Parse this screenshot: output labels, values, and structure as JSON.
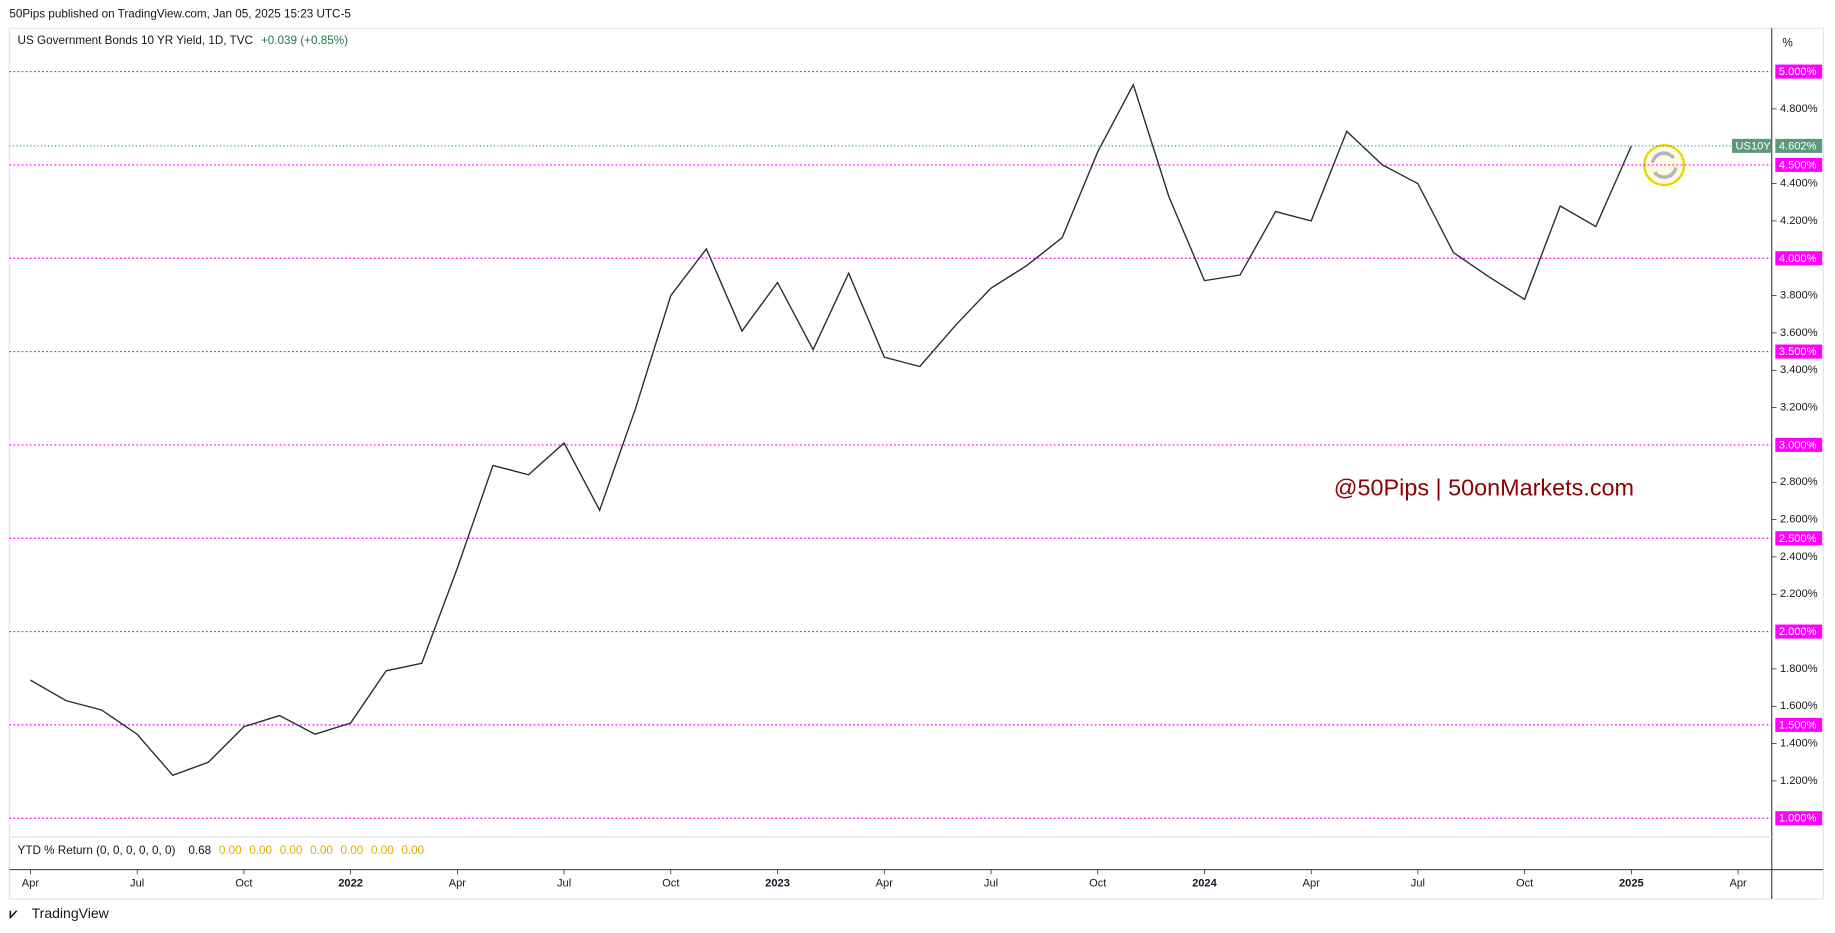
{
  "header": "50Pips published on TradingView.com, Jan 05, 2025 15:23 UTC-5",
  "footer": "TradingView",
  "chart_data": {
    "type": "line",
    "title": "US Government Bonds 10 YR Yield, 1D, TVC",
    "change": "+0.039 (+0.85%)",
    "annotation": "@50Pips | 50onMarkets.com",
    "y_unit": "%",
    "color": "#2a2e39",
    "x": [
      "2021-04",
      "2021-05",
      "2021-06",
      "2021-07",
      "2021-08",
      "2021-09",
      "2021-10",
      "2021-11",
      "2021-12",
      "2022-01",
      "2022-02",
      "2022-03",
      "2022-04",
      "2022-05",
      "2022-06",
      "2022-07",
      "2022-08",
      "2022-09",
      "2022-10",
      "2022-11",
      "2022-12",
      "2023-01",
      "2023-02",
      "2023-03",
      "2023-04",
      "2023-05",
      "2023-06",
      "2023-07",
      "2023-08",
      "2023-09",
      "2023-10",
      "2023-11",
      "2023-12",
      "2024-01",
      "2024-02",
      "2024-03",
      "2024-04",
      "2024-05",
      "2024-06",
      "2024-07",
      "2024-08",
      "2024-09",
      "2024-10",
      "2024-11",
      "2024-12",
      "2025-01"
    ],
    "series": [
      {
        "name": "US10Y",
        "values": [
          1.74,
          1.63,
          1.58,
          1.45,
          1.23,
          1.3,
          1.49,
          1.55,
          1.45,
          1.51,
          1.79,
          1.83,
          2.34,
          2.89,
          2.84,
          3.01,
          2.65,
          3.19,
          3.8,
          4.05,
          3.61,
          3.87,
          3.51,
          3.92,
          3.47,
          3.42,
          3.64,
          3.84,
          3.96,
          4.11,
          4.57,
          4.93,
          4.33,
          3.88,
          3.91,
          4.25,
          4.2,
          4.68,
          4.5,
          4.4,
          4.03,
          3.9,
          3.78,
          4.28,
          4.17,
          4.602
        ],
        "last_label": "4.602%"
      }
    ],
    "ylim": [
      0.9,
      5.226
    ],
    "yticks": [
      {
        "value": 1.2,
        "label": "1.200%"
      },
      {
        "value": 1.4,
        "label": "1.400%"
      },
      {
        "value": 1.6,
        "label": "1.600%"
      },
      {
        "value": 1.8,
        "label": "1.800%"
      },
      {
        "value": 2.2,
        "label": "2.200%"
      },
      {
        "value": 2.4,
        "label": "2.400%"
      },
      {
        "value": 2.6,
        "label": "2.600%"
      },
      {
        "value": 2.8,
        "label": "2.800%"
      },
      {
        "value": 3.2,
        "label": "3.200%"
      },
      {
        "value": 3.4,
        "label": "3.400%"
      },
      {
        "value": 3.6,
        "label": "3.600%"
      },
      {
        "value": 3.8,
        "label": "3.800%"
      },
      {
        "value": 4.2,
        "label": "4.200%"
      },
      {
        "value": 4.4,
        "label": "4.400%"
      },
      {
        "value": 4.8,
        "label": "4.800%"
      }
    ],
    "levels": [
      {
        "value": 5.0,
        "label": "5.000%"
      },
      {
        "value": 4.5,
        "label": "4.500%"
      },
      {
        "value": 4.0,
        "label": "4.000%"
      },
      {
        "value": 3.5,
        "label": "3.500%"
      },
      {
        "value": 3.0,
        "label": "3.000%"
      },
      {
        "value": 2.5,
        "label": "2.500%"
      },
      {
        "value": 2.0,
        "label": "2.000%"
      },
      {
        "value": 1.5,
        "label": "1.500%"
      },
      {
        "value": 1.0,
        "label": "1.000%"
      }
    ],
    "level_color": "#ff00ff",
    "xticks": [
      {
        "value": "2021-04",
        "label": "Apr"
      },
      {
        "value": "2021-07",
        "label": "Jul"
      },
      {
        "value": "2021-10",
        "label": "Oct"
      },
      {
        "value": "2022-01",
        "label": "2022"
      },
      {
        "value": "2022-04",
        "label": "Apr"
      },
      {
        "value": "2022-07",
        "label": "Jul"
      },
      {
        "value": "2022-10",
        "label": "Oct"
      },
      {
        "value": "2023-01",
        "label": "2023"
      },
      {
        "value": "2023-04",
        "label": "Apr"
      },
      {
        "value": "2023-07",
        "label": "Jul"
      },
      {
        "value": "2023-10",
        "label": "Oct"
      },
      {
        "value": "2024-01",
        "label": "2024"
      },
      {
        "value": "2024-04",
        "label": "Apr"
      },
      {
        "value": "2024-07",
        "label": "Jul"
      },
      {
        "value": "2024-10",
        "label": "Oct"
      },
      {
        "value": "2025-01",
        "label": "2025"
      },
      {
        "value": "2025-04",
        "label": "Apr"
      }
    ],
    "indicator": {
      "name": "YTD % Return (0, 0, 0, 0, 0, 0)",
      "values": [
        "0.68",
        "0.00",
        "0.00",
        "0.00",
        "0.00",
        "0.00",
        "0.00",
        "0.00"
      ]
    }
  }
}
